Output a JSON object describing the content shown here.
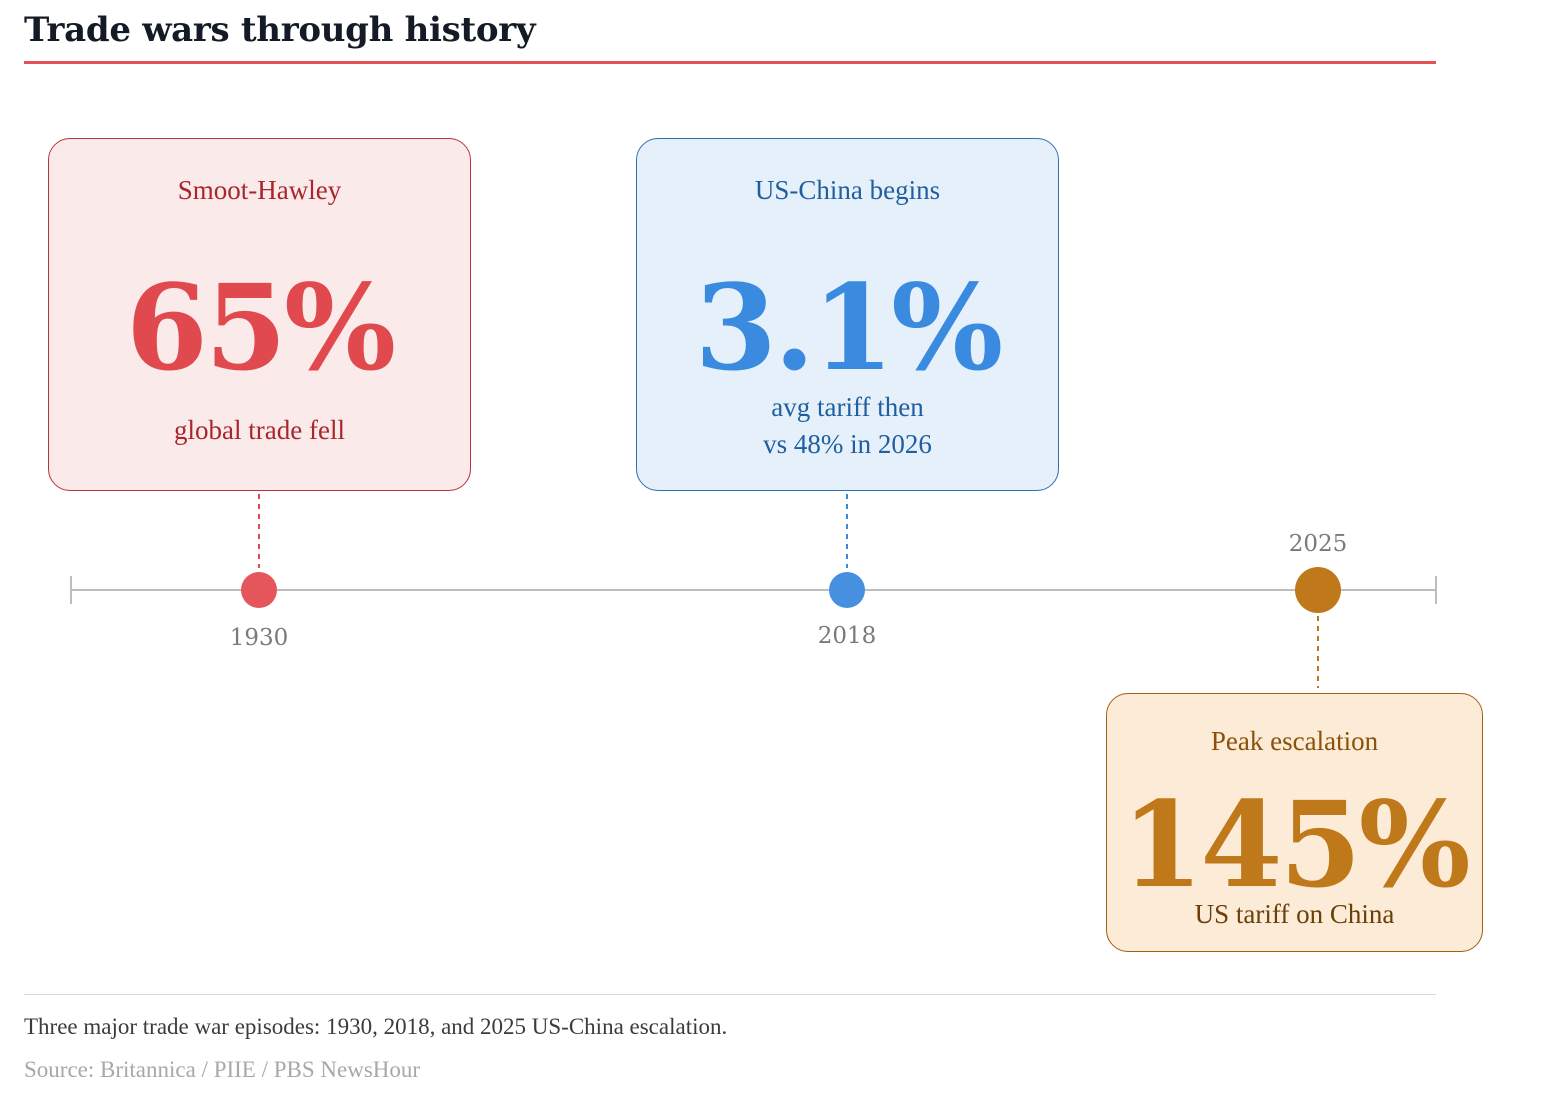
{
  "header": {
    "title": "Trade wars through history"
  },
  "colors": {
    "accent_red": "#e04a4f",
    "accent_blue": "#3a8be0",
    "accent_orange": "#c0791a"
  },
  "events": [
    {
      "year": "1930",
      "label": "Smoot-Hawley",
      "stat": "65%",
      "desc_lines": [
        "global trade fell"
      ]
    },
    {
      "year": "2018",
      "label": "US-China begins",
      "stat": "3.1%",
      "desc_lines": [
        "avg tariff then",
        "vs 48% in 2026"
      ]
    },
    {
      "year": "2025",
      "label": "Peak escalation",
      "stat": "145%",
      "desc_lines": [
        "US tariff on China"
      ]
    }
  ],
  "footer": {
    "caption": "Three major trade war episodes: 1930, 2018, and 2025 US-China escalation.",
    "source": "Source: Britannica / PIIE / PBS NewsHour"
  }
}
